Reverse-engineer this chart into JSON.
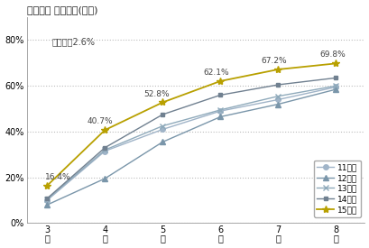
{
  "title": "内々定率 年度比較(全体)",
  "annotation": "前月比＋2.6%",
  "x_values": [
    3,
    4,
    5,
    6,
    7,
    8
  ],
  "x_labels": [
    "3\n月",
    "4\n月",
    "5\n月",
    "6\n月",
    "7\n月",
    "8\n月"
  ],
  "series": [
    {
      "label": "11年卒",
      "values": [
        10.0,
        31.5,
        41.0,
        49.0,
        54.0,
        59.5
      ],
      "color": "#a0b4c8",
      "marker": "o",
      "markersize": 4,
      "linewidth": 1.0
    },
    {
      "label": "12年卒",
      "values": [
        8.0,
        19.5,
        35.5,
        46.5,
        52.0,
        58.5
      ],
      "color": "#7a96aa",
      "marker": "^",
      "markersize": 4,
      "linewidth": 1.0
    },
    {
      "label": "13年卒",
      "values": [
        10.5,
        32.0,
        42.5,
        49.5,
        55.5,
        60.0
      ],
      "color": "#8faabb",
      "marker": "x",
      "markersize": 4,
      "linewidth": 1.0
    },
    {
      "label": "14年卒",
      "values": [
        10.8,
        33.0,
        47.5,
        56.0,
        60.5,
        63.5
      ],
      "color": "#708090",
      "marker": "s",
      "markersize": 3.5,
      "linewidth": 1.0
    },
    {
      "label": "15年卒",
      "values": [
        16.4,
        40.7,
        52.8,
        62.1,
        67.2,
        69.8
      ],
      "color": "#b8a000",
      "marker": "*",
      "markersize": 6,
      "linewidth": 1.3
    }
  ],
  "point_labels": [
    "16.4%",
    "40.7%",
    "52.8%",
    "62.1%",
    "67.2%",
    "69.8%"
  ],
  "point_y": [
    16.4,
    40.7,
    52.8,
    62.1,
    67.2,
    69.8
  ],
  "ylim": [
    0,
    90
  ],
  "yticks": [
    0,
    20,
    40,
    60,
    80
  ],
  "ytick_labels": [
    "0%",
    "20%",
    "40%",
    "60%",
    "80%"
  ],
  "xlim_min": 2.65,
  "xlim_max": 8.5,
  "background_color": "#ffffff",
  "plot_bg_color": "#ffffff",
  "grid_color": "#bbbbbb",
  "title_fontsize": 8,
  "legend_fontsize": 6.5,
  "tick_fontsize": 7,
  "label_fontsize": 6.5,
  "annotation_fontsize": 7
}
